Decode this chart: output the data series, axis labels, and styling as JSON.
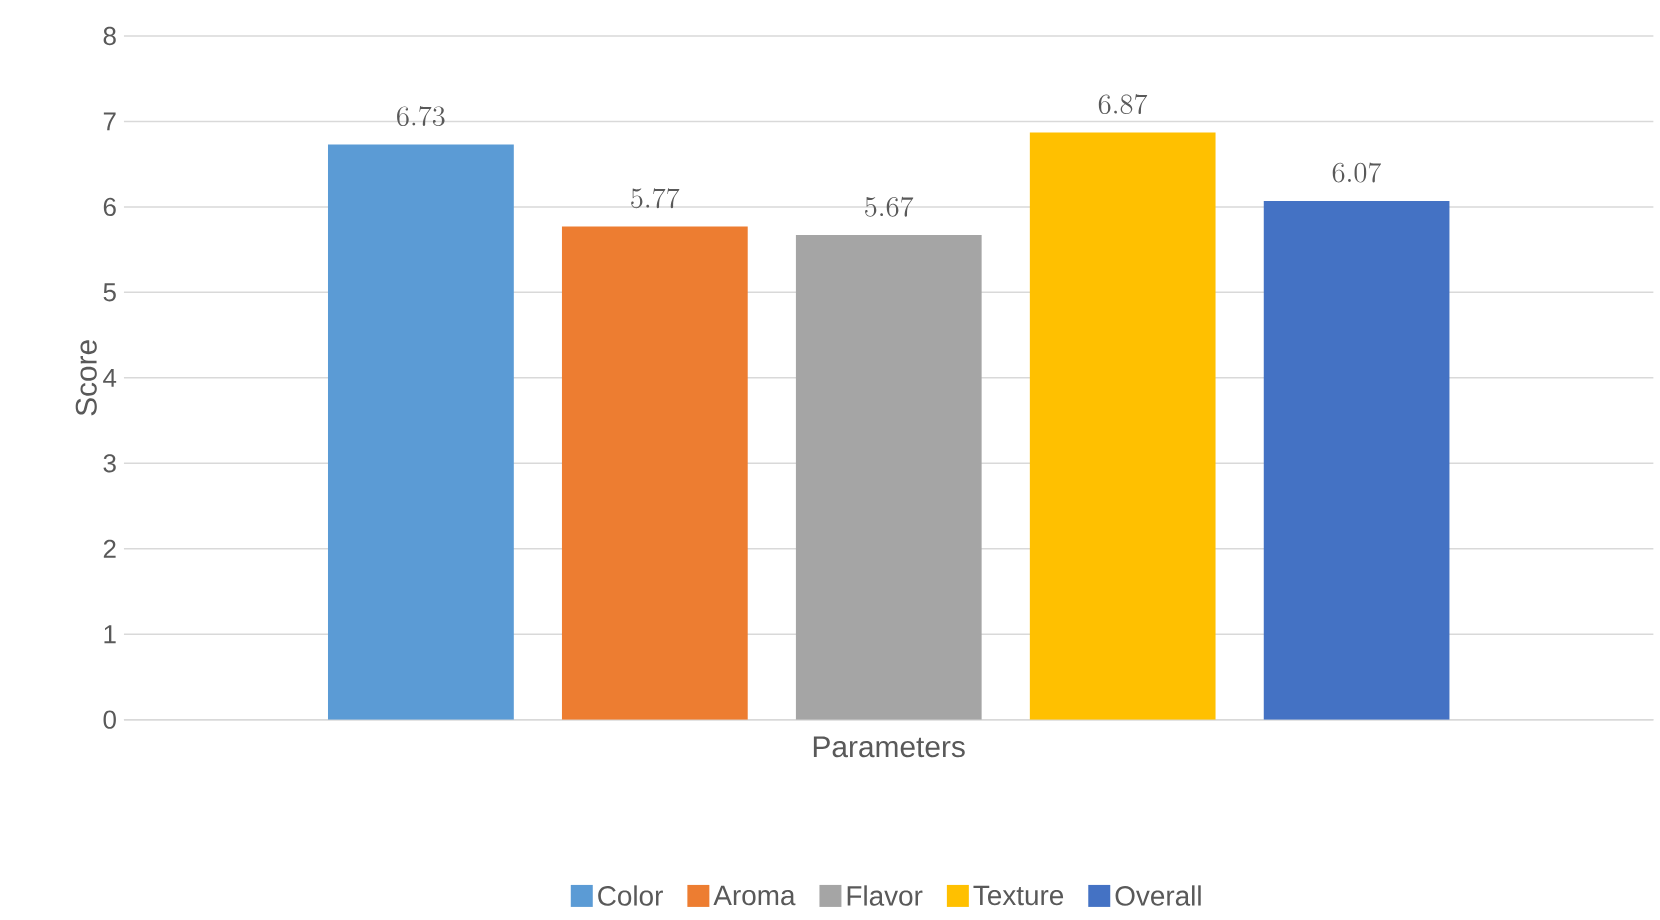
{
  "chart_data": {
    "type": "bar",
    "xlabel": "Parameters",
    "ylabel": "Score",
    "categories": [
      null
    ],
    "series": [
      {
        "name": "Color",
        "color": "#5b9bd5",
        "values": [
          6.73
        ]
      },
      {
        "name": "Aroma",
        "color": "#ed7d31",
        "values": [
          5.77
        ]
      },
      {
        "name": "Flavor",
        "color": "#a5a5a5",
        "values": [
          5.67
        ]
      },
      {
        "name": "Texture",
        "color": "#ffc000",
        "values": [
          6.87
        ]
      },
      {
        "name": "Overall",
        "color": "#4472c4",
        "values": [
          6.07
        ]
      }
    ],
    "ylim": [
      0,
      8
    ],
    "yticks": [
      0,
      1,
      2,
      3,
      4,
      5,
      6,
      7,
      8
    ],
    "grid": "y",
    "legend": "bottom",
    "data_labels": true
  }
}
